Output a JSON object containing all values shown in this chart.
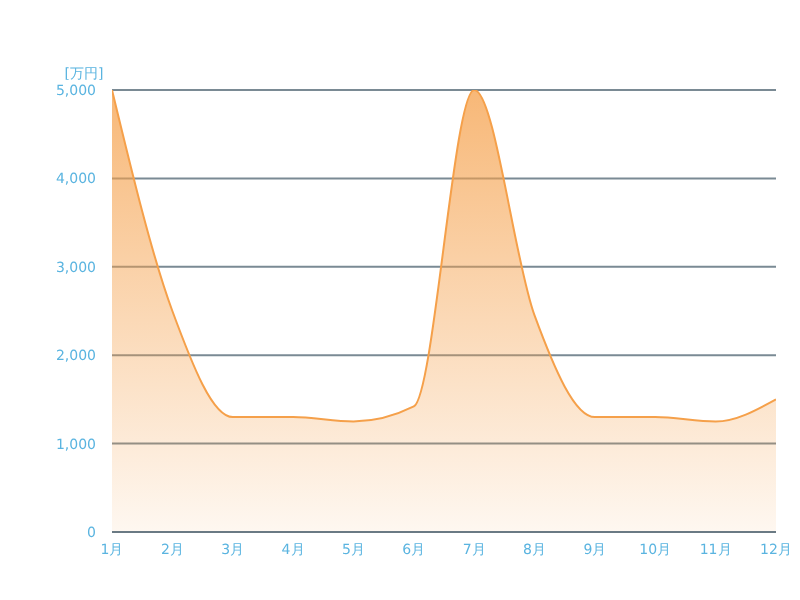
{
  "chart_data": {
    "type": "area",
    "ylabel": "[万円]",
    "categories": [
      "1月",
      "2月",
      "3月",
      "4月",
      "5月",
      "6月",
      "7月",
      "8月",
      "9月",
      "10月",
      "11月",
      "12月"
    ],
    "series": [
      {
        "color": "#f5a04a",
        "values": [
          5000,
          2500,
          1300,
          1300,
          1250,
          1420,
          5000,
          2450,
          1300,
          1300,
          1250,
          1500
        ]
      }
    ],
    "ylim": [
      0,
      5000
    ],
    "yticks": [
      0,
      {
        "value": 1000,
        "label": "1,000"
      },
      {
        "value": 2000,
        "label": "2,000"
      },
      {
        "value": 3000,
        "label": "3,000"
      },
      {
        "value": 4000,
        "label": "4,000"
      },
      {
        "value": 5000,
        "label": "5,000"
      }
    ],
    "grid": "y",
    "legend": false
  }
}
